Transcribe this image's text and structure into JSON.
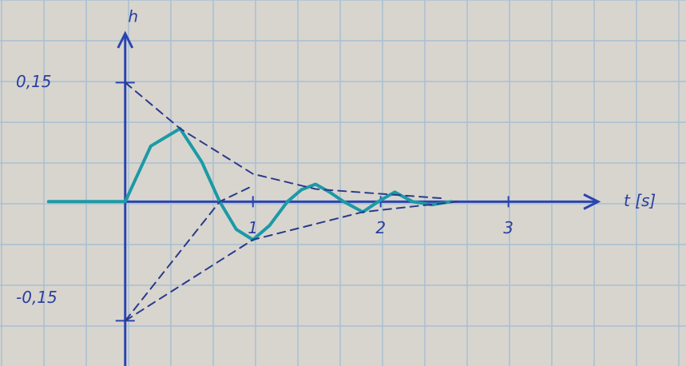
{
  "chart_data": {
    "type": "line",
    "x_label": "t [s]",
    "y_label": "h",
    "xlim": [
      -0.98,
      4.39
    ],
    "ylim": [
      -0.207,
      0.254
    ],
    "xticks": [
      1,
      2,
      3
    ],
    "yticks": [
      {
        "value": 0.15,
        "label": "0,15"
      },
      {
        "value": -0.15,
        "label": "-0,15"
      }
    ],
    "grid": true,
    "series": [
      {
        "color": "#1b9aa6",
        "width": 4,
        "x": [
          -0.6,
          0,
          0.2,
          0.43,
          0.6,
          0.74,
          0.87,
          1.0,
          1.13,
          1.27,
          1.38,
          1.49,
          1.6,
          1.71,
          1.86,
          1.98,
          2.11,
          2.25,
          2.4,
          2.55
        ],
        "values": [
          0,
          0,
          0.07,
          0.092,
          0.05,
          0,
          -0.035,
          -0.048,
          -0.03,
          0,
          0.015,
          0.022,
          0.012,
          0,
          -0.013,
          0,
          0.012,
          0,
          -0.004,
          0
        ]
      },
      {
        "color": "#2a3a8a",
        "dashed": true,
        "width": 2,
        "x": [
          0,
          0.43,
          1.0,
          1.49,
          2.5
        ],
        "values": [
          0.15,
          0.092,
          0.035,
          0.016,
          0.004
        ]
      },
      {
        "color": "#2a3a8a",
        "dashed": true,
        "width": 2,
        "x": [
          0,
          1.0,
          1.86,
          2.6
        ],
        "values": [
          -0.15,
          -0.048,
          -0.013,
          0
        ]
      },
      {
        "color": "#2a3a8a",
        "dashed": true,
        "width": 2,
        "x": [
          0,
          0.74,
          1.0
        ],
        "values": [
          -0.15,
          0,
          0.02
        ]
      }
    ]
  }
}
